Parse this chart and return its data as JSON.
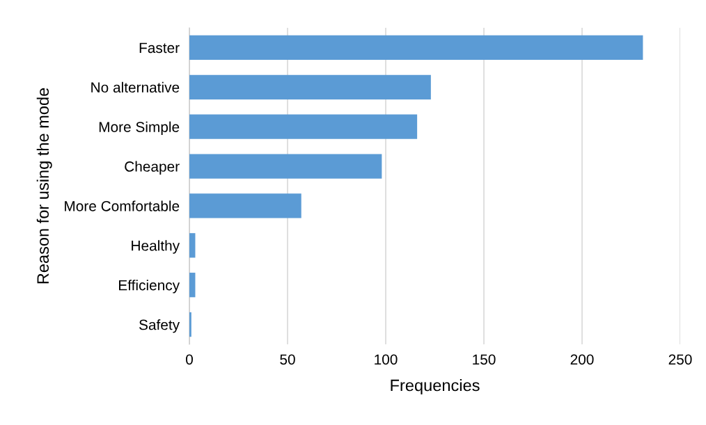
{
  "chart_data": {
    "type": "bar",
    "orientation": "horizontal",
    "xlabel": "Frequencies",
    "ylabel": "Reason for using the mode",
    "categories": [
      "Faster",
      "No alternative",
      "More Simple",
      "Cheaper",
      "More Comfortable",
      "Healthy",
      "Efficiency",
      "Safety"
    ],
    "values": [
      231,
      123,
      116,
      98,
      57,
      3,
      3,
      1
    ],
    "color": "#5b9bd5",
    "xlim": [
      0,
      250
    ],
    "xticks": [
      0,
      50,
      100,
      150,
      200,
      250
    ],
    "grid": "x",
    "legend": false
  }
}
